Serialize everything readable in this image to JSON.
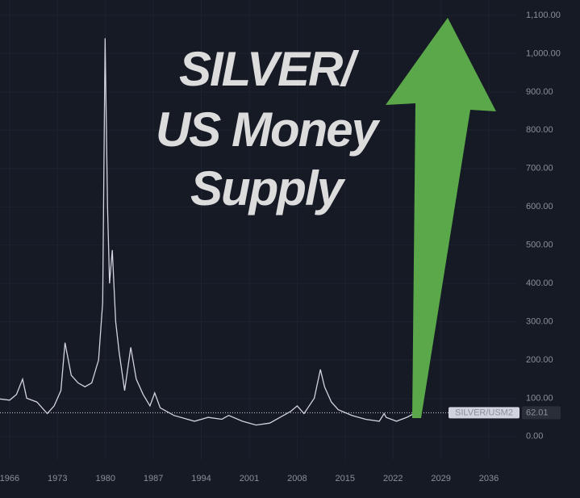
{
  "chart_data": {
    "type": "line",
    "title_lines": [
      "SILVER/",
      "US Money",
      "Supply"
    ],
    "x": [
      1964.6,
      1966,
      1967,
      1967.9,
      1968.5,
      1970,
      1971.5,
      1972.5,
      1973.5,
      1974.1,
      1975,
      1976,
      1977,
      1978,
      1979,
      1979.6,
      1979.95,
      1980.3,
      1980.6,
      1981,
      1981.5,
      1982,
      1982.8,
      1983.7,
      1984.5,
      1985.5,
      1986.5,
      1987.2,
      1988,
      1990,
      1993,
      1995,
      1997,
      1998,
      2000,
      2002,
      2004,
      2006,
      2007,
      2008,
      2009,
      2010.5,
      2011.4,
      2012,
      2013,
      2014,
      2016,
      2018,
      2020,
      2020.7,
      2021,
      2022.5,
      2024,
      2025.3
    ],
    "series": [
      {
        "name": "SILVER/USM2",
        "color": "#d1d4dc",
        "values": [
          98,
          95,
          110,
          150,
          100,
          90,
          60,
          80,
          120,
          245,
          160,
          140,
          130,
          140,
          200,
          350,
          1040,
          600,
          400,
          487,
          300,
          220,
          120,
          233,
          150,
          110,
          80,
          114,
          75,
          55,
          40,
          50,
          45,
          55,
          40,
          30,
          35,
          55,
          65,
          80,
          60,
          100,
          175,
          130,
          90,
          70,
          55,
          45,
          40,
          60,
          50,
          40,
          50,
          62.01
        ]
      }
    ],
    "xlim": [
      1964.6,
      2040
    ],
    "xticks": [
      1966,
      1973,
      1980,
      1987,
      1994,
      2001,
      2008,
      2015,
      2022,
      2029,
      2036
    ],
    "ylim": [
      -72,
      1140
    ],
    "yticks": [
      {
        "value": 0,
        "label": "0.00"
      },
      {
        "value": 100,
        "label": "100.00"
      },
      {
        "value": 200,
        "label": "200.00"
      },
      {
        "value": 300,
        "label": "300.00"
      },
      {
        "value": 400,
        "label": "400.00"
      },
      {
        "value": 500,
        "label": "500.00"
      },
      {
        "value": 600,
        "label": "600.00"
      },
      {
        "value": 700,
        "label": "700.00"
      },
      {
        "value": 800,
        "label": "800.00"
      },
      {
        "value": 900,
        "label": "900.00"
      },
      {
        "value": 1000,
        "label": "1,000.00"
      },
      {
        "value": 1100,
        "label": "1,100.00"
      }
    ],
    "grid": true
  }
}
